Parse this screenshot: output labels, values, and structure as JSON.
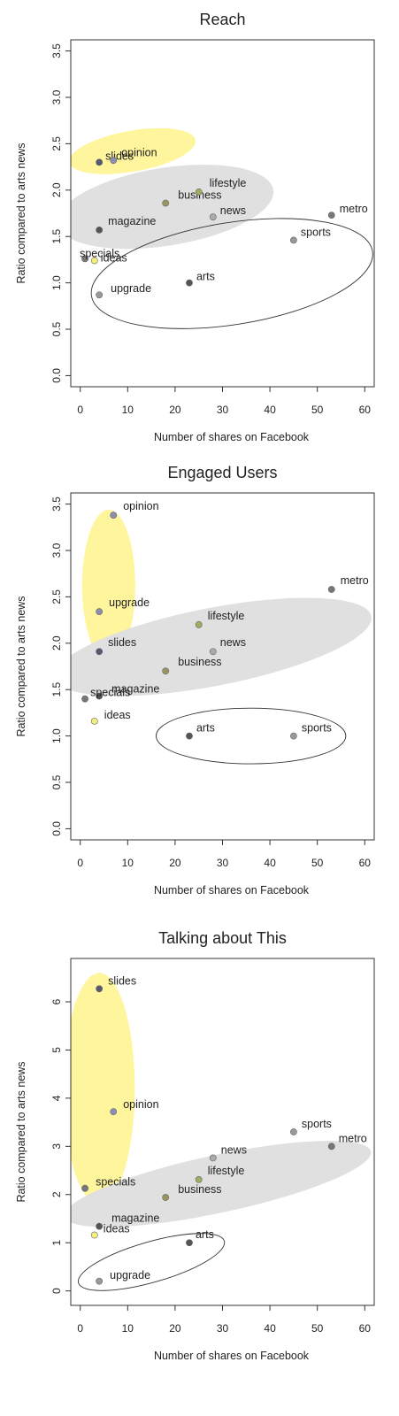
{
  "colors": {
    "yellow_region": "#fff59d",
    "gray_region": "#e0e0e0",
    "outline_region": "#333333",
    "plot_border": "#333333"
  },
  "chart_data": [
    {
      "type": "scatter",
      "title": "Reach",
      "xlabel": "Number of shares on Facebook",
      "ylabel": "Ratio compared to arts news",
      "xlim": [
        -2,
        62
      ],
      "ylim": [
        -0.12,
        3.62
      ],
      "xticks": [
        0,
        10,
        20,
        30,
        40,
        50,
        60
      ],
      "yticks": [
        0.0,
        0.5,
        1.0,
        1.5,
        2.0,
        2.5,
        3.0,
        3.5
      ],
      "ytick_labels": [
        "0.0",
        "0.5",
        "1.0",
        "1.5",
        "2.0",
        "2.5",
        "3.0",
        "3.5"
      ],
      "points": [
        {
          "label": "slides",
          "x": 4,
          "y": 2.3,
          "color": "#555a6e"
        },
        {
          "label": "opinion",
          "x": 7,
          "y": 2.32,
          "color": "#8a8fb0"
        },
        {
          "label": "ideas",
          "x": 3,
          "y": 1.24,
          "color": "#f5f07a"
        },
        {
          "label": "specials",
          "x": 1,
          "y": 1.26,
          "color": "#777777"
        },
        {
          "label": "magazine",
          "x": 4,
          "y": 1.57,
          "color": "#555555"
        },
        {
          "label": "business",
          "x": 18,
          "y": 1.86,
          "color": "#9a9560"
        },
        {
          "label": "lifestyle",
          "x": 25,
          "y": 1.98,
          "color": "#9ab060"
        },
        {
          "label": "news",
          "x": 28,
          "y": 1.71,
          "color": "#aaaaaa"
        },
        {
          "label": "metro",
          "x": 53,
          "y": 1.73,
          "color": "#777777"
        },
        {
          "label": "sports",
          "x": 45,
          "y": 1.46,
          "color": "#999999"
        },
        {
          "label": "arts",
          "x": 23,
          "y": 1.0,
          "color": "#555555"
        },
        {
          "label": "upgrade",
          "x": 4,
          "y": 0.87,
          "color": "#999999"
        }
      ],
      "regions": [
        {
          "type": "yellow",
          "cx": 11,
          "cy": 2.42,
          "rx": 13.5,
          "ry": 0.22,
          "angle": 10
        },
        {
          "type": "gray",
          "cx": 18,
          "cy": 1.82,
          "rx": 23,
          "ry": 0.42,
          "angle": 9
        },
        {
          "type": "outline",
          "cx": 32,
          "cy": 1.1,
          "rx": 30,
          "ry": 0.55,
          "angle": 9
        }
      ]
    },
    {
      "type": "scatter",
      "title": "Engaged Users",
      "xlabel": "Number of shares on Facebook",
      "ylabel": "Ratio compared to arts news",
      "xlim": [
        -2,
        62
      ],
      "ylim": [
        -0.12,
        3.62
      ],
      "xticks": [
        0,
        10,
        20,
        30,
        40,
        50,
        60
      ],
      "yticks": [
        0.0,
        0.5,
        1.0,
        1.5,
        2.0,
        2.5,
        3.0,
        3.5
      ],
      "ytick_labels": [
        "0.0",
        "0.5",
        "1.0",
        "1.5",
        "2.0",
        "2.5",
        "3.0",
        "3.5"
      ],
      "points": [
        {
          "label": "opinion",
          "x": 7,
          "y": 3.38,
          "color": "#8a8fb0"
        },
        {
          "label": "upgrade",
          "x": 4,
          "y": 2.34,
          "color": "#8a8fb0"
        },
        {
          "label": "slides",
          "x": 4,
          "y": 1.91,
          "color": "#555a6e"
        },
        {
          "label": "metro",
          "x": 53,
          "y": 2.58,
          "color": "#777777"
        },
        {
          "label": "lifestyle",
          "x": 25,
          "y": 2.2,
          "color": "#9ab060"
        },
        {
          "label": "news",
          "x": 28,
          "y": 1.91,
          "color": "#aaaaaa"
        },
        {
          "label": "business",
          "x": 18,
          "y": 1.7,
          "color": "#9a9560"
        },
        {
          "label": "magazine",
          "x": 4,
          "y": 1.43,
          "color": "#555555"
        },
        {
          "label": "specials",
          "x": 1,
          "y": 1.4,
          "color": "#777777"
        },
        {
          "label": "ideas",
          "x": 3,
          "y": 1.16,
          "color": "#f5f07a"
        },
        {
          "label": "arts",
          "x": 23,
          "y": 1.0,
          "color": "#555555"
        },
        {
          "label": "sports",
          "x": 45,
          "y": 1.0,
          "color": "#999999"
        }
      ],
      "regions": [
        {
          "type": "yellow",
          "cx": 6,
          "cy": 2.62,
          "rx": 5.6,
          "ry": 0.82,
          "angle": 0
        },
        {
          "type": "gray",
          "cx": 28,
          "cy": 1.96,
          "rx": 34,
          "ry": 0.42,
          "angle": 11
        },
        {
          "type": "outline",
          "cx": 36,
          "cy": 1.0,
          "rx": 20,
          "ry": 0.3,
          "angle": 0
        }
      ]
    },
    {
      "type": "scatter",
      "title": "Talking about This",
      "xlabel": "Number of shares on Facebook",
      "ylabel": "Ratio compared to arts news",
      "xlim": [
        -2,
        62
      ],
      "ylim": [
        -0.3,
        6.9
      ],
      "xticks": [
        0,
        10,
        20,
        30,
        40,
        50,
        60
      ],
      "yticks": [
        0,
        1,
        2,
        3,
        4,
        5,
        6
      ],
      "ytick_labels": [
        "0",
        "1",
        "2",
        "3",
        "4",
        "5",
        "6"
      ],
      "points": [
        {
          "label": "slides",
          "x": 4,
          "y": 6.27,
          "color": "#555a6e"
        },
        {
          "label": "opinion",
          "x": 7,
          "y": 3.72,
          "color": "#8a8fb0"
        },
        {
          "label": "specials",
          "x": 1,
          "y": 2.13,
          "color": "#777777"
        },
        {
          "label": "sports",
          "x": 45,
          "y": 3.3,
          "color": "#999999"
        },
        {
          "label": "metro",
          "x": 53,
          "y": 3.0,
          "color": "#777777"
        },
        {
          "label": "news",
          "x": 28,
          "y": 2.76,
          "color": "#aaaaaa"
        },
        {
          "label": "lifestyle",
          "x": 25,
          "y": 2.31,
          "color": "#9ab060"
        },
        {
          "label": "business",
          "x": 18,
          "y": 1.94,
          "color": "#9a9560"
        },
        {
          "label": "magazine",
          "x": 4,
          "y": 1.34,
          "color": "#555555"
        },
        {
          "label": "ideas",
          "x": 3,
          "y": 1.16,
          "color": "#f5f07a"
        },
        {
          "label": "arts",
          "x": 23,
          "y": 1.0,
          "color": "#555555"
        },
        {
          "label": "upgrade",
          "x": 4,
          "y": 0.2,
          "color": "#999999"
        }
      ],
      "regions": [
        {
          "type": "yellow",
          "cx": 4,
          "cy": 4.2,
          "rx": 7.5,
          "ry": 2.4,
          "angle": 0
        },
        {
          "type": "gray",
          "cx": 29,
          "cy": 2.22,
          "rx": 33,
          "ry": 0.6,
          "angle": 12
        },
        {
          "type": "outline",
          "cx": 15,
          "cy": 0.6,
          "rx": 16,
          "ry": 0.42,
          "angle": 16
        }
      ]
    }
  ]
}
